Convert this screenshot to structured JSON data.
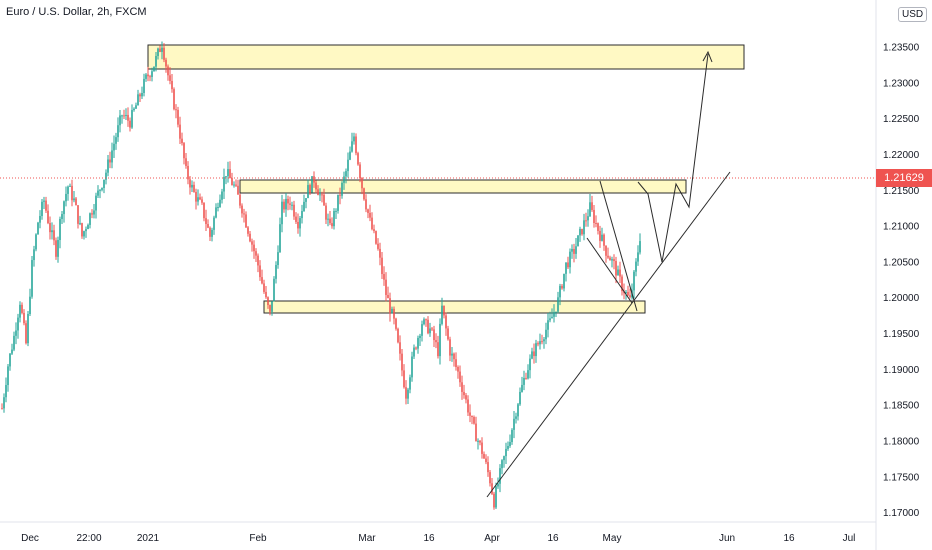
{
  "header": {
    "title": "Euro / U.S. Dollar, 2h, FXCM",
    "currency": "USD",
    "currency_partial": "1.▯0"
  },
  "current_price_label": "1.21629",
  "colors": {
    "up": "#26a69a",
    "down": "#ef5350",
    "zone_fill": "#fff9c4",
    "zone_border": "#2b2b2b",
    "line": "#2b2b2b",
    "axis_text": "#131722",
    "price_line": "#ef5350"
  },
  "chart_data": {
    "type": "candlestick",
    "title": "Euro / U.S. Dollar, 2h, FXCM",
    "x_tick_labels": [
      "Dec",
      "22:00",
      "2021",
      "Feb",
      "Mar",
      "16",
      "Apr",
      "16",
      "May",
      "Jun",
      "16",
      "Jul"
    ],
    "y_tick_labels": [
      "1.23500",
      "1.23000",
      "1.22500",
      "1.22000",
      "1.21500",
      "1.21000",
      "1.20500",
      "1.20000",
      "1.19500",
      "1.19000",
      "1.18500",
      "1.18000",
      "1.17500",
      "1.17000"
    ],
    "y_ticks": [
      1.235,
      1.23,
      1.225,
      1.22,
      1.215,
      1.21,
      1.205,
      1.2,
      1.195,
      1.19,
      1.185,
      1.18,
      1.175,
      1.17
    ],
    "ylim": [
      1.1675,
      1.2415
    ],
    "current_price": 1.21629,
    "price_path": [
      [
        0,
        1.1845
      ],
      [
        3,
        1.1905
      ],
      [
        6,
        1.1945
      ],
      [
        9,
        1.1995
      ],
      [
        12,
        1.1935
      ],
      [
        15,
        1.2045
      ],
      [
        18,
        1.2105
      ],
      [
        21,
        1.2135
      ],
      [
        24,
        1.2095
      ],
      [
        27,
        1.2065
      ],
      [
        30,
        1.2125
      ],
      [
        33,
        1.2155
      ],
      [
        36,
        1.2135
      ],
      [
        40,
        1.2085
      ],
      [
        44,
        1.2115
      ],
      [
        48,
        1.2145
      ],
      [
        52,
        1.2175
      ],
      [
        56,
        1.2215
      ],
      [
        60,
        1.2255
      ],
      [
        64,
        1.2245
      ],
      [
        68,
        1.2275
      ],
      [
        72,
        1.2305
      ],
      [
        76,
        1.2325
      ],
      [
        80,
        1.2355
      ],
      [
        84,
        1.2295
      ],
      [
        88,
        1.2245
      ],
      [
        92,
        1.2175
      ],
      [
        96,
        1.2145
      ],
      [
        100,
        1.2125
      ],
      [
        104,
        1.2085
      ],
      [
        108,
        1.2135
      ],
      [
        112,
        1.2175
      ],
      [
        116,
        1.2155
      ],
      [
        120,
        1.2125
      ],
      [
        124,
        1.2085
      ],
      [
        128,
        1.2045
      ],
      [
        132,
        1.1995
      ],
      [
        134,
        1.1975
      ],
      [
        137,
        1.2045
      ],
      [
        140,
        1.2125
      ],
      [
        144,
        1.2135
      ],
      [
        148,
        1.2105
      ],
      [
        152,
        1.2145
      ],
      [
        156,
        1.2165
      ],
      [
        160,
        1.2135
      ],
      [
        164,
        1.2095
      ],
      [
        168,
        1.2135
      ],
      [
        172,
        1.2175
      ],
      [
        176,
        1.2225
      ],
      [
        180,
        1.2155
      ],
      [
        184,
        1.2105
      ],
      [
        188,
        1.2065
      ],
      [
        192,
        1.2005
      ],
      [
        196,
        1.1965
      ],
      [
        199,
        1.1915
      ],
      [
        202,
        1.1865
      ],
      [
        206,
        1.1925
      ],
      [
        210,
        1.1965
      ],
      [
        214,
        1.1955
      ],
      [
        218,
        1.1925
      ],
      [
        220,
        1.1985
      ],
      [
        224,
        1.1925
      ],
      [
        228,
        1.1895
      ],
      [
        232,
        1.1855
      ],
      [
        236,
        1.1815
      ],
      [
        240,
        1.1785
      ],
      [
        244,
        1.1745
      ],
      [
        246,
        1.1715
      ],
      [
        250,
        1.1765
      ],
      [
        254,
        1.1805
      ],
      [
        258,
        1.1855
      ],
      [
        262,
        1.1895
      ],
      [
        266,
        1.1925
      ],
      [
        270,
        1.1945
      ],
      [
        274,
        1.1965
      ],
      [
        278,
        1.1995
      ],
      [
        282,
        1.2045
      ],
      [
        286,
        1.2065
      ],
      [
        290,
        1.2095
      ],
      [
        294,
        1.2125
      ],
      [
        298,
        1.2095
      ],
      [
        302,
        1.2065
      ],
      [
        306,
        1.2045
      ],
      [
        310,
        1.2015
      ],
      [
        314,
        1.1995
      ],
      [
        317,
        1.2045
      ],
      [
        319,
        1.2085
      ],
      [
        320,
        1.21629
      ]
    ],
    "zones": [
      {
        "y1": 1.2345,
        "y2": 1.2315
      },
      {
        "y1": 1.2155,
        "y2": 1.214
      },
      {
        "y1": 1.199,
        "y2": 1.1978
      }
    ]
  }
}
